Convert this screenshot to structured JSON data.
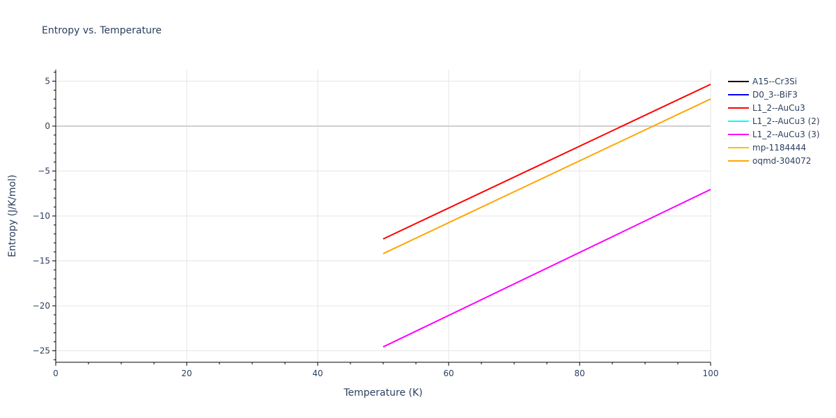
{
  "chart_data": {
    "type": "line",
    "title": "Entropy vs. Temperature",
    "xlabel": "Temperature (K)",
    "ylabel": "Entropy (J/K/mol)",
    "xlim": [
      0,
      100
    ],
    "ylim": [
      -26.3,
      6.3
    ],
    "x_ticks": [
      0,
      20,
      40,
      60,
      80,
      100
    ],
    "y_ticks": [
      5,
      0,
      -5,
      -10,
      -15,
      -20,
      -25
    ],
    "grid": true,
    "legend_position": "right",
    "series": [
      {
        "name": "A15--Cr3Si",
        "color": "#000000",
        "x": [],
        "y": []
      },
      {
        "name": "D0_3--BiF3",
        "color": "#0000ff",
        "x": [],
        "y": []
      },
      {
        "name": "L1_2--AuCu3",
        "color": "#ff0000",
        "x": [
          50,
          100
        ],
        "y": [
          -12.56,
          4.65
        ]
      },
      {
        "name": "L1_2--AuCu3 (2)",
        "color": "#00ffff",
        "x": [],
        "y": []
      },
      {
        "name": "L1_2--AuCu3 (3)",
        "color": "#ff00ff",
        "x": [
          50,
          100
        ],
        "y": [
          -24.57,
          -7.05
        ]
      },
      {
        "name": "mp-1184444",
        "color": "#ffbf00",
        "x": [],
        "y": []
      },
      {
        "name": "oqmd-304072",
        "color": "#ffa500",
        "x": [
          50,
          100
        ],
        "y": [
          -14.19,
          3.02
        ]
      }
    ]
  }
}
